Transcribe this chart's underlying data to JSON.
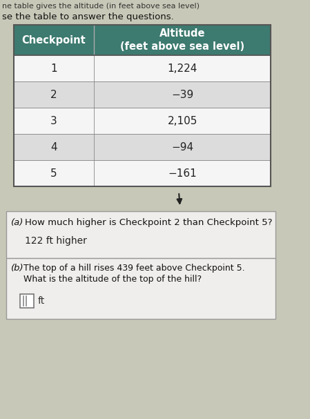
{
  "top_text_line1": "ne table gives the altitude (in feet above sea level)",
  "top_text_line2": "se the table to answer the questions.",
  "header_col1": "Checkpoint",
  "header_col2": "Altitude\n(feet above sea level)",
  "checkpoints": [
    "1",
    "2",
    "3",
    "4",
    "5"
  ],
  "altitudes": [
    "1,224",
    "−39",
    "2,105",
    "−94",
    "−161"
  ],
  "header_bg": "#3d7a6f",
  "header_text_color": "#ffffff",
  "row_bg_white": "#f5f5f5",
  "row_bg_gray": "#dcdcdc",
  "border_color": "#888888",
  "question_a_label": "(a)",
  "question_a_text": "How much higher is Checkpoint 2 than Checkpoint 5?",
  "answer_a": "122 ft higher",
  "question_b_label": "(b)",
  "question_b_line1": "The top of a hill rises 439 feet above Checkpoint 5.",
  "question_b_line2": "What is the altitude of the top of the hill?",
  "answer_b_suffix": "ft",
  "page_bg": "#c8c8b8",
  "qa_box_bg": "#f0eeec",
  "qa_box_border": "#999999"
}
